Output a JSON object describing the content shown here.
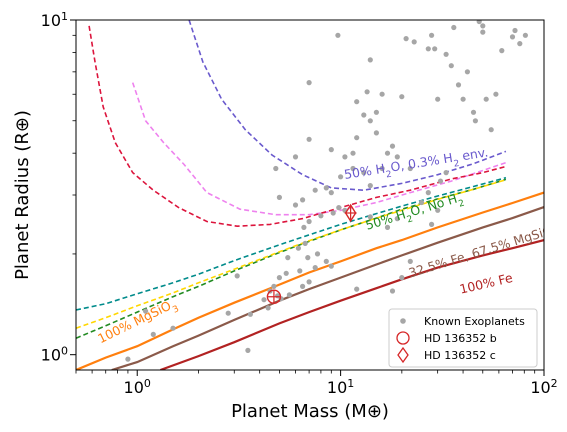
{
  "chart_data": {
    "type": "line",
    "xlabel": "Planet Mass (M⊕)",
    "ylabel": "Planet Radius (R⊕)",
    "xscale": "log",
    "yscale": "log",
    "xlim": [
      0.5,
      100
    ],
    "ylim": [
      0.9,
      10
    ],
    "x_ticks": [
      {
        "value": 1,
        "base": "10",
        "exp": "0"
      },
      {
        "value": 10,
        "base": "10",
        "exp": "1"
      },
      {
        "value": 100,
        "base": "10",
        "exp": "2"
      }
    ],
    "y_ticks": [
      {
        "value": 1,
        "base": "10",
        "exp": "0"
      },
      {
        "value": 10,
        "base": "10",
        "exp": "1"
      }
    ],
    "grid": false,
    "legend_position": "lower right",
    "legend": [
      {
        "label": "Known Exoplanets",
        "marker": "dot",
        "color": "#a6a6a6"
      },
      {
        "label": "HD 136352 b",
        "marker": "circle",
        "color": "#d62728"
      },
      {
        "label": "HD 136352 c",
        "marker": "diamond",
        "color": "#d62728"
      }
    ],
    "series": [
      {
        "color": "#6a5acd",
        "style": "dashed",
        "x": [
          1.8,
          2.1,
          2.6,
          3.4,
          4.6,
          6.5,
          9,
          13,
          20,
          30,
          45,
          65
        ],
        "y": [
          10,
          7.5,
          5.8,
          4.7,
          3.95,
          3.45,
          3.15,
          3.1,
          3.25,
          3.45,
          3.72,
          4.05
        ]
      },
      {
        "color": "#ee82ee",
        "style": "dashed",
        "x": [
          0.95,
          1.1,
          1.35,
          1.7,
          2.2,
          3.2,
          4.8,
          7,
          10,
          15,
          22,
          35,
          50,
          65
        ],
        "y": [
          6.5,
          5.0,
          4.3,
          3.7,
          3.05,
          2.72,
          2.62,
          2.62,
          2.7,
          2.85,
          3.05,
          3.3,
          3.55,
          3.75
        ]
      },
      {
        "color": "#dc143c",
        "style": "dashed",
        "x": [
          0.58,
          0.62,
          0.68,
          0.78,
          0.95,
          1.2,
          1.6,
          2.2,
          3.1,
          4.5,
          6.5,
          10,
          15,
          22,
          35,
          50,
          65
        ],
        "y": [
          9.6,
          7.5,
          5.5,
          4.3,
          3.5,
          3.1,
          2.75,
          2.5,
          2.42,
          2.45,
          2.55,
          2.75,
          2.95,
          3.1,
          3.35,
          3.5,
          3.65
        ]
      },
      {
        "color": "#008b8b",
        "style": "dashed",
        "x": [
          0.5,
          0.7,
          1,
          1.5,
          2,
          3,
          5,
          7,
          10,
          15,
          20,
          30,
          45,
          65
        ],
        "y": [
          1.36,
          1.42,
          1.52,
          1.64,
          1.74,
          1.91,
          2.13,
          2.28,
          2.45,
          2.64,
          2.78,
          2.98,
          3.18,
          3.38
        ]
      },
      {
        "color": "#228b22",
        "style": "dashed",
        "x": [
          0.5,
          0.7,
          1,
          1.5,
          2,
          3,
          5,
          7,
          10,
          15,
          20,
          30,
          45,
          65
        ],
        "y": [
          1.12,
          1.22,
          1.34,
          1.49,
          1.6,
          1.78,
          2.02,
          2.18,
          2.36,
          2.56,
          2.72,
          2.92,
          3.12,
          3.34
        ]
      },
      {
        "color": "#ffd700",
        "style": "dashed",
        "x": [
          0.5,
          0.7,
          1,
          1.5,
          2,
          3,
          5,
          7,
          10,
          15,
          20,
          30,
          45,
          65
        ],
        "y": [
          1.2,
          1.29,
          1.4,
          1.53,
          1.64,
          1.8,
          2.03,
          2.19,
          2.36,
          2.56,
          2.7,
          2.91,
          3.12,
          3.33
        ]
      },
      {
        "color": "#ff7f0e",
        "style": "solid",
        "x": [
          0.5,
          0.7,
          1,
          1.5,
          2,
          3,
          5,
          7,
          10,
          15,
          20,
          30,
          50,
          70,
          100
        ],
        "y": [
          0.9,
          0.98,
          1.06,
          1.19,
          1.29,
          1.43,
          1.62,
          1.76,
          1.9,
          2.08,
          2.2,
          2.4,
          2.66,
          2.84,
          3.05
        ]
      },
      {
        "color": "#8b5a4a",
        "style": "solid",
        "x": [
          0.75,
          1,
          1.5,
          2,
          3,
          5,
          7,
          10,
          15,
          20,
          30,
          50,
          70,
          100
        ],
        "y": [
          0.9,
          0.95,
          1.06,
          1.14,
          1.27,
          1.45,
          1.57,
          1.7,
          1.86,
          1.98,
          2.16,
          2.4,
          2.56,
          2.76
        ]
      },
      {
        "color": "#b22222",
        "style": "solid",
        "x": [
          1.3,
          2,
          3,
          5,
          7,
          10,
          15,
          20,
          30,
          50,
          70,
          100
        ],
        "y": [
          0.9,
          0.99,
          1.09,
          1.24,
          1.34,
          1.45,
          1.58,
          1.68,
          1.82,
          1.98,
          2.08,
          2.2
        ]
      }
    ],
    "annotations": [
      {
        "parts": [
          {
            "t": "50% H"
          },
          {
            "t": "2",
            "sub": true
          },
          {
            "t": "O, 0.3% H"
          },
          {
            "t": "2",
            "sub": true
          },
          {
            "t": " env."
          }
        ],
        "color": "#6a5acd",
        "x": 10.5,
        "y": 3.35,
        "angle": -9
      },
      {
        "parts": [
          {
            "t": "50% H"
          },
          {
            "t": "2",
            "sub": true
          },
          {
            "t": "O, No H"
          },
          {
            "t": "2",
            "sub": true
          }
        ],
        "color": "#228b22",
        "x": 13.5,
        "y": 2.36,
        "angle": -17
      },
      {
        "parts": [
          {
            "t": "100% MgSiO"
          },
          {
            "t": "3",
            "sub": true
          }
        ],
        "color": "#ff7f0e",
        "x": 0.66,
        "y": 1.08,
        "angle": -26
      },
      {
        "parts": [
          {
            "t": "32.5% Fe, 67.5% MgSiO"
          },
          {
            "t": "3",
            "sub": true
          }
        ],
        "color": "#8b5a4a",
        "x": 22,
        "y": 1.7,
        "angle": -17
      },
      {
        "parts": [
          {
            "t": "100% Fe"
          }
        ],
        "color": "#b22222",
        "x": 39,
        "y": 1.52,
        "angle": -13
      }
    ],
    "exoplanets": [
      [
        9.7,
        9.0
      ],
      [
        12,
        5.7
      ],
      [
        13.5,
        6.1
      ],
      [
        7,
        6.5
      ],
      [
        14,
        7.6
      ],
      [
        20,
        5.9
      ],
      [
        15,
        5.3
      ],
      [
        10.5,
        3.9
      ],
      [
        11.5,
        4.0
      ],
      [
        12,
        4.45
      ],
      [
        13,
        5.2
      ],
      [
        14,
        5.0
      ],
      [
        15,
        4.6
      ],
      [
        16,
        6.0
      ],
      [
        18,
        4.2
      ],
      [
        17,
        4.0
      ],
      [
        16,
        3.6
      ],
      [
        19,
        3.9
      ],
      [
        22,
        3.6
      ],
      [
        21,
        8.8
      ],
      [
        23,
        8.6
      ],
      [
        27,
        8.2
      ],
      [
        28,
        9.0
      ],
      [
        30,
        5.8
      ],
      [
        33,
        7.9
      ],
      [
        35,
        7.3
      ],
      [
        36,
        9.5
      ],
      [
        38,
        6.4
      ],
      [
        40,
        5.8
      ],
      [
        42,
        7.0
      ],
      [
        45,
        5.3
      ],
      [
        46,
        5.0
      ],
      [
        50,
        9.2
      ],
      [
        52,
        5.8
      ],
      [
        55,
        4.7
      ],
      [
        58,
        6.0
      ],
      [
        62,
        8.1
      ],
      [
        70,
        8.9
      ],
      [
        72,
        9.3
      ],
      [
        76,
        8.5
      ],
      [
        81,
        9.0
      ],
      [
        48,
        9.9
      ],
      [
        50,
        9.6
      ],
      [
        29,
        8.2
      ],
      [
        6,
        3.9
      ],
      [
        7,
        4.4
      ],
      [
        9,
        4.1
      ],
      [
        10,
        3.4
      ],
      [
        11.5,
        3.6
      ],
      [
        13,
        3.5
      ],
      [
        14,
        3.2
      ],
      [
        4.8,
        3.6
      ],
      [
        5,
        2.95
      ],
      [
        6,
        2.8
      ],
      [
        6.5,
        2.9
      ],
      [
        7.5,
        3.1
      ],
      [
        8.5,
        3.15
      ],
      [
        9,
        3.05
      ],
      [
        7,
        2.5
      ],
      [
        8,
        2.6
      ],
      [
        9.2,
        2.65
      ],
      [
        9.8,
        2.75
      ],
      [
        10.5,
        2.7
      ],
      [
        6.6,
        2.4
      ],
      [
        6.2,
        2.08
      ],
      [
        5.5,
        1.95
      ],
      [
        6.7,
        2.15
      ],
      [
        6.9,
        1.95
      ],
      [
        7.5,
        1.82
      ],
      [
        7.7,
        2.0
      ],
      [
        8.5,
        1.9
      ],
      [
        9,
        1.84
      ],
      [
        5,
        1.7
      ],
      [
        5.4,
        1.75
      ],
      [
        6.3,
        1.78
      ],
      [
        6.5,
        1.6
      ],
      [
        7,
        1.65
      ],
      [
        4.5,
        1.55
      ],
      [
        4.7,
        1.6
      ],
      [
        4.9,
        1.5
      ],
      [
        5.1,
        1.47
      ],
      [
        5.6,
        1.51
      ],
      [
        4.2,
        1.46
      ],
      [
        3.6,
        1.32
      ],
      [
        2.8,
        1.33
      ],
      [
        4.4,
        1.38
      ],
      [
        3.1,
        1.72
      ],
      [
        1.1,
        1.35
      ],
      [
        1.2,
        1.15
      ],
      [
        1.5,
        1.2
      ],
      [
        3.5,
        1.03
      ],
      [
        0.9,
        0.97
      ],
      [
        18,
        1.55
      ],
      [
        20,
        1.7
      ],
      [
        12,
        1.57
      ],
      [
        22,
        1.9
      ],
      [
        17,
        2.4
      ],
      [
        19,
        2.55
      ],
      [
        28,
        2.45
      ],
      [
        30,
        2.7
      ],
      [
        27,
        3.05
      ],
      [
        33,
        3.5
      ],
      [
        31,
        3.3
      ],
      [
        25,
        2.85
      ],
      [
        14,
        2.58
      ]
    ],
    "hd136352_b": {
      "x": 4.7,
      "y": 1.49,
      "color": "#d62728"
    },
    "hd136352_c": {
      "x": 11.2,
      "y": 2.65,
      "color": "#d62728"
    }
  }
}
